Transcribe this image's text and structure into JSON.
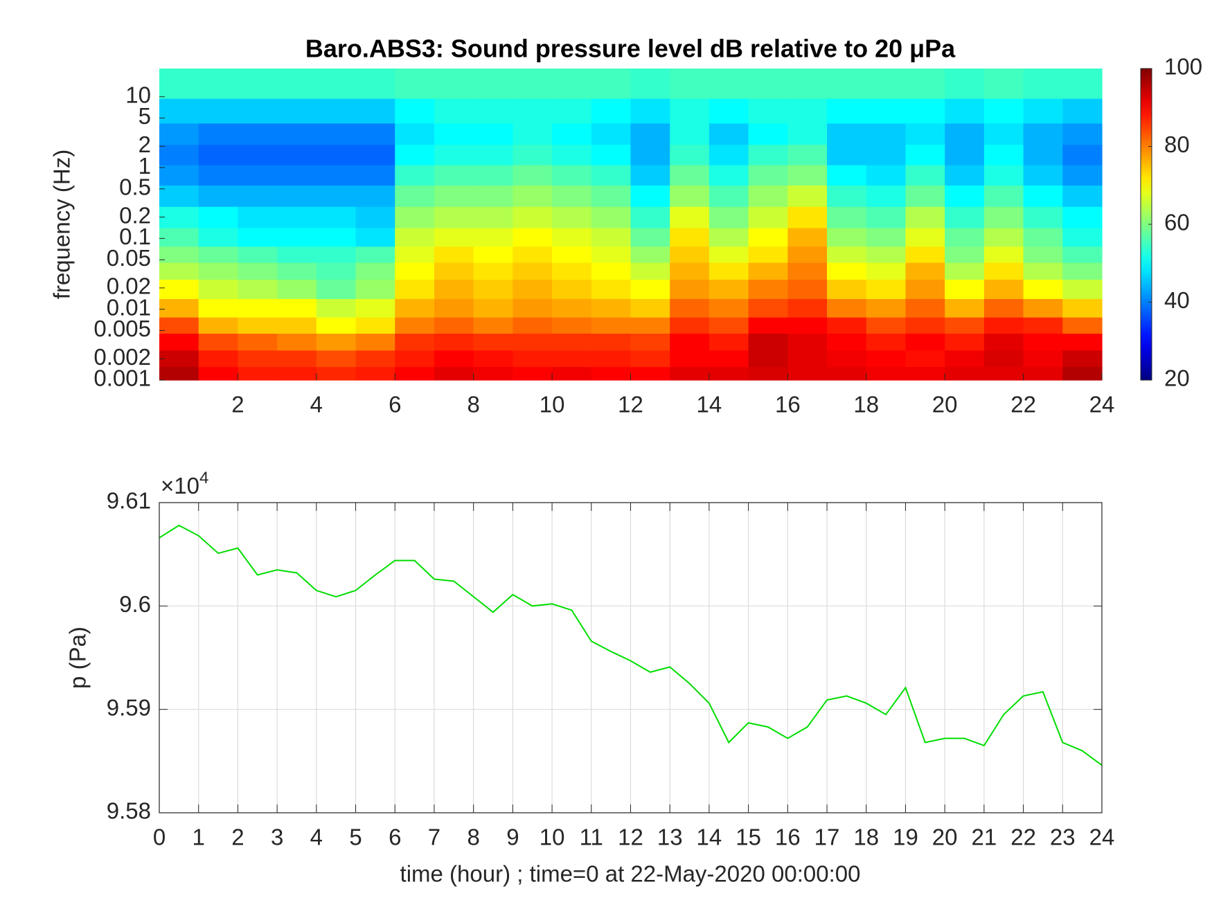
{
  "chart_data": [
    {
      "type": "heatmap",
      "title": "Baro.ABS3: Sound pressure level dB relative to 20 μPa",
      "y_label": "frequency (Hz)",
      "xlim": [
        0,
        24
      ],
      "xticks": [
        2,
        4,
        6,
        8,
        10,
        12,
        14,
        16,
        18,
        20,
        22,
        24
      ],
      "ylim": [
        0.001,
        25
      ],
      "y_scale": "log",
      "yticks": [
        0.001,
        0.002,
        0.005,
        0.01,
        0.02,
        0.05,
        0.1,
        0.2,
        0.5,
        1,
        2,
        5,
        10
      ],
      "colormap": "jet",
      "clim": [
        20,
        100
      ],
      "cticks": [
        20,
        40,
        60,
        80,
        100
      ],
      "grid": false,
      "x": [
        0.5,
        1.5,
        2.5,
        3.5,
        4.5,
        5.5,
        6.5,
        7.5,
        8.5,
        9.5,
        10.5,
        11.5,
        12.5,
        13.5,
        14.5,
        15.5,
        16.5,
        17.5,
        18.5,
        19.5,
        20.5,
        21.5,
        22.5,
        23.5
      ],
      "y": [
        0.0012,
        0.002,
        0.0035,
        0.006,
        0.01,
        0.02,
        0.035,
        0.06,
        0.1,
        0.2,
        0.4,
        0.8,
        1.5,
        3,
        6,
        15
      ],
      "z": [
        [
          96,
          90,
          88,
          88,
          87,
          88,
          90,
          92,
          91,
          90,
          91,
          90,
          90,
          92,
          92,
          93,
          92,
          92,
          91,
          91,
          92,
          92,
          92,
          96
        ],
        [
          94,
          88,
          86,
          86,
          84,
          86,
          88,
          90,
          89,
          88,
          88,
          88,
          87,
          90,
          90,
          94,
          92,
          91,
          90,
          89,
          91,
          93,
          91,
          94
        ],
        [
          90,
          84,
          82,
          80,
          78,
          80,
          86,
          87,
          86,
          86,
          86,
          86,
          85,
          90,
          88,
          94,
          92,
          90,
          88,
          90,
          88,
          92,
          90,
          90
        ],
        [
          84,
          76,
          74,
          74,
          70,
          72,
          80,
          82,
          80,
          82,
          81,
          80,
          80,
          86,
          84,
          90,
          90,
          88,
          84,
          86,
          84,
          88,
          87,
          82
        ],
        [
          76,
          70,
          70,
          70,
          66,
          68,
          76,
          78,
          76,
          78,
          77,
          76,
          74,
          82,
          80,
          84,
          86,
          80,
          78,
          82,
          76,
          82,
          78,
          74
        ],
        [
          70,
          66,
          64,
          62,
          58,
          62,
          72,
          76,
          74,
          76,
          74,
          72,
          70,
          78,
          76,
          80,
          82,
          74,
          72,
          78,
          70,
          76,
          70,
          66
        ],
        [
          64,
          62,
          60,
          58,
          56,
          60,
          70,
          74,
          72,
          74,
          72,
          70,
          66,
          76,
          72,
          76,
          80,
          70,
          68,
          76,
          64,
          72,
          64,
          60
        ],
        [
          60,
          58,
          56,
          54,
          54,
          56,
          68,
          72,
          70,
          72,
          70,
          68,
          62,
          74,
          68,
          72,
          78,
          66,
          64,
          72,
          60,
          68,
          60,
          56
        ],
        [
          56,
          52,
          50,
          50,
          50,
          48,
          66,
          68,
          68,
          70,
          68,
          66,
          58,
          72,
          64,
          70,
          76,
          62,
          60,
          68,
          58,
          64,
          58,
          52
        ],
        [
          52,
          50,
          48,
          48,
          48,
          46,
          62,
          64,
          64,
          66,
          64,
          62,
          54,
          68,
          60,
          66,
          72,
          58,
          56,
          64,
          54,
          60,
          54,
          50
        ],
        [
          46,
          44,
          44,
          44,
          44,
          44,
          58,
          60,
          60,
          62,
          60,
          58,
          50,
          62,
          56,
          62,
          66,
          54,
          52,
          58,
          50,
          56,
          50,
          46
        ],
        [
          42,
          40,
          40,
          40,
          40,
          40,
          54,
          56,
          56,
          58,
          56,
          54,
          46,
          58,
          52,
          58,
          60,
          50,
          48,
          54,
          46,
          52,
          46,
          42
        ],
        [
          40,
          38,
          38,
          38,
          38,
          38,
          50,
          52,
          52,
          54,
          52,
          50,
          44,
          54,
          48,
          54,
          56,
          46,
          46,
          50,
          44,
          50,
          44,
          40
        ],
        [
          42,
          40,
          40,
          40,
          40,
          40,
          48,
          50,
          50,
          52,
          50,
          48,
          44,
          52,
          46,
          50,
          52,
          46,
          46,
          48,
          44,
          48,
          44,
          42
        ],
        [
          46,
          46,
          46,
          46,
          46,
          46,
          50,
          52,
          52,
          52,
          52,
          50,
          48,
          52,
          50,
          52,
          52,
          50,
          50,
          50,
          48,
          50,
          48,
          46
        ],
        [
          54,
          54,
          54,
          54,
          54,
          54,
          55,
          55,
          55,
          55,
          55,
          55,
          54,
          55,
          55,
          55,
          55,
          55,
          55,
          55,
          54,
          55,
          54,
          54
        ]
      ]
    },
    {
      "type": "line",
      "x_label": "time (hour) ; time=0 at 22-May-2020 00:00:00",
      "y_label": "p (Pa)",
      "y_offset_label": {
        "base": "×10",
        "exponent": "4"
      },
      "xlim": [
        0,
        24
      ],
      "xticks": [
        0,
        1,
        2,
        3,
        4,
        5,
        6,
        7,
        8,
        9,
        10,
        11,
        12,
        13,
        14,
        15,
        16,
        17,
        18,
        19,
        20,
        21,
        22,
        23,
        24
      ],
      "ylim": [
        9.58,
        9.61
      ],
      "yticks": [
        9.58,
        9.59,
        9.6,
        9.61
      ],
      "grid": true,
      "color": "#00dd00",
      "x": [
        0,
        0.5,
        1,
        1.5,
        2,
        2.5,
        3,
        3.5,
        4,
        4.5,
        5,
        5.5,
        6,
        6.5,
        7,
        7.5,
        8,
        8.5,
        9,
        9.5,
        10,
        10.5,
        11,
        11.5,
        12,
        12.5,
        13,
        13.5,
        14,
        14.5,
        15,
        15.5,
        16,
        16.5,
        17,
        17.5,
        18,
        18.5,
        19,
        19.5,
        20,
        20.5,
        21,
        21.5,
        22,
        22.5,
        23,
        23.5,
        24
      ],
      "values": [
        9.6066,
        9.6078,
        9.6068,
        9.6051,
        9.6056,
        9.603,
        9.6035,
        9.6032,
        9.6015,
        9.6009,
        9.6015,
        9.603,
        9.6044,
        9.6044,
        9.6026,
        9.6024,
        9.6009,
        9.5994,
        9.6011,
        9.6,
        9.6002,
        9.5996,
        9.5966,
        9.5956,
        9.5947,
        9.5936,
        9.5941,
        9.5925,
        9.5906,
        9.5868,
        9.5887,
        9.5883,
        9.5872,
        9.5883,
        9.5909,
        9.5913,
        9.5906,
        9.5895,
        9.5921,
        9.5868,
        9.5872,
        9.5872,
        9.5865,
        9.5895,
        9.5913,
        9.5917,
        9.5868,
        9.586,
        9.5846
      ]
    }
  ]
}
